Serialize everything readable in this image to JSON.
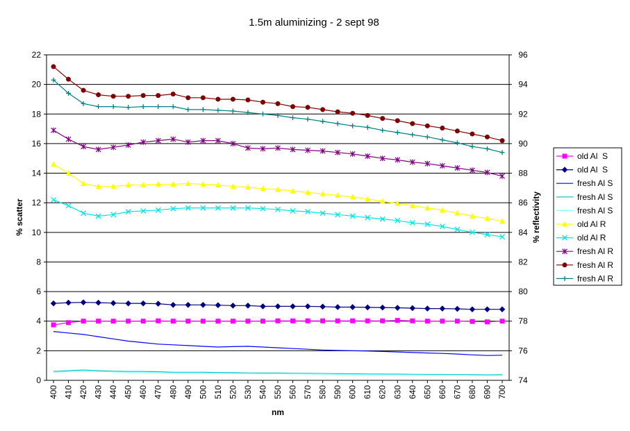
{
  "chart_data": {
    "type": "line",
    "title": "1.5m aluminizing - 2 sept 98",
    "xlabel": "nm",
    "ylabel_left": "% scatter",
    "ylabel_right": "% reflectivity",
    "x": [
      400,
      410,
      420,
      430,
      440,
      450,
      460,
      470,
      480,
      490,
      500,
      510,
      520,
      530,
      540,
      550,
      560,
      570,
      580,
      590,
      600,
      610,
      620,
      630,
      640,
      650,
      660,
      670,
      680,
      690,
      700
    ],
    "ylim_left": [
      0,
      22
    ],
    "yticks_left": [
      0,
      2,
      4,
      6,
      8,
      10,
      12,
      14,
      16,
      18,
      20,
      22
    ],
    "ylim_right": [
      74,
      96
    ],
    "yticks_right": [
      74,
      76,
      78,
      80,
      82,
      84,
      86,
      88,
      90,
      92,
      94,
      96
    ],
    "grid": "horizontal major lines",
    "legend": "right",
    "series": [
      {
        "name": "old Al  S",
        "axis": "left",
        "color": "#ff00ff",
        "marker": "square",
        "values": [
          3.75,
          3.9,
          4.0,
          4.0,
          4.0,
          4.0,
          4.0,
          4.02,
          4.0,
          4.0,
          4.0,
          4.0,
          4.0,
          4.0,
          4.0,
          4.02,
          4.02,
          4.02,
          4.02,
          4.02,
          4.02,
          4.02,
          4.02,
          4.05,
          4.02,
          4.0,
          4.0,
          4.0,
          3.98,
          3.95,
          4.0
        ]
      },
      {
        "name": "old Al  S",
        "axis": "left",
        "color": "#000080",
        "marker": "diamond",
        "values": [
          5.2,
          5.25,
          5.27,
          5.25,
          5.22,
          5.2,
          5.2,
          5.18,
          5.1,
          5.1,
          5.1,
          5.08,
          5.05,
          5.05,
          5.0,
          5.0,
          5.0,
          5.0,
          4.98,
          4.95,
          4.95,
          4.93,
          4.92,
          4.9,
          4.88,
          4.85,
          4.85,
          4.83,
          4.8,
          4.8,
          4.8
        ]
      },
      {
        "name": "fresh Al S",
        "axis": "left",
        "color": "#0000ff",
        "marker": "none",
        "values": [
          3.3,
          3.2,
          3.1,
          2.95,
          2.8,
          2.65,
          2.55,
          2.45,
          2.4,
          2.35,
          2.3,
          2.25,
          2.28,
          2.3,
          2.25,
          2.2,
          2.15,
          2.1,
          2.05,
          2.02,
          2.0,
          1.98,
          1.95,
          1.92,
          1.88,
          1.85,
          1.82,
          1.78,
          1.72,
          1.68,
          1.7
        ]
      },
      {
        "name": "fresh Al S",
        "axis": "left",
        "color": "#00bfbf",
        "marker": "none",
        "values": [
          0.6,
          0.65,
          0.7,
          0.65,
          0.62,
          0.6,
          0.6,
          0.58,
          0.55,
          0.55,
          0.55,
          0.53,
          0.52,
          0.5,
          0.5,
          0.5,
          0.48,
          0.47,
          0.46,
          0.45,
          0.44,
          0.43,
          0.42,
          0.42,
          0.41,
          0.4,
          0.4,
          0.39,
          0.38,
          0.37,
          0.38
        ]
      },
      {
        "name": "fresh Al S",
        "axis": "left",
        "color": "#80ffff",
        "marker": "none",
        "values": [
          0.55,
          0.6,
          0.65,
          0.6,
          0.57,
          0.55,
          0.55,
          0.53,
          0.5,
          0.5,
          0.5,
          0.48,
          0.47,
          0.46,
          0.45,
          0.45,
          0.44,
          0.43,
          0.42,
          0.41,
          0.4,
          0.39,
          0.38,
          0.38,
          0.37,
          0.36,
          0.36,
          0.35,
          0.34,
          0.33,
          0.34
        ]
      },
      {
        "name": "old Al R",
        "axis": "right",
        "color": "#ffff00",
        "marker": "triangle",
        "values": [
          88.6,
          88.0,
          87.3,
          87.1,
          87.1,
          87.2,
          87.2,
          87.25,
          87.25,
          87.3,
          87.25,
          87.2,
          87.1,
          87.05,
          86.95,
          86.9,
          86.8,
          86.7,
          86.6,
          86.5,
          86.4,
          86.25,
          86.1,
          85.95,
          85.8,
          85.65,
          85.5,
          85.3,
          85.1,
          84.95,
          84.75
        ]
      },
      {
        "name": "old Al R",
        "axis": "right",
        "color": "#00e5e5",
        "marker": "x",
        "values": [
          86.2,
          85.8,
          85.3,
          85.1,
          85.2,
          85.4,
          85.45,
          85.5,
          85.6,
          85.65,
          85.65,
          85.65,
          85.65,
          85.65,
          85.6,
          85.55,
          85.45,
          85.4,
          85.3,
          85.2,
          85.1,
          85.0,
          84.9,
          84.8,
          84.65,
          84.55,
          84.4,
          84.2,
          84.0,
          83.85,
          83.7
        ]
      },
      {
        "name": "fresh Al R",
        "axis": "right",
        "color": "#800080",
        "marker": "star",
        "values": [
          90.9,
          90.3,
          89.8,
          89.6,
          89.75,
          89.9,
          90.1,
          90.2,
          90.3,
          90.1,
          90.2,
          90.2,
          90.0,
          89.7,
          89.65,
          89.7,
          89.6,
          89.55,
          89.5,
          89.4,
          89.3,
          89.15,
          89.0,
          88.9,
          88.75,
          88.65,
          88.5,
          88.35,
          88.2,
          88.05,
          87.8
        ]
      },
      {
        "name": "fresh Al R",
        "axis": "right",
        "color": "#800000",
        "marker": "circle",
        "values": [
          95.2,
          94.35,
          93.6,
          93.3,
          93.2,
          93.2,
          93.25,
          93.25,
          93.35,
          93.1,
          93.1,
          93.0,
          93.0,
          92.95,
          92.8,
          92.7,
          92.5,
          92.45,
          92.3,
          92.15,
          92.05,
          91.9,
          91.7,
          91.55,
          91.35,
          91.2,
          91.05,
          90.85,
          90.65,
          90.45,
          90.2
        ]
      },
      {
        "name": "fresh Al R",
        "axis": "right",
        "color": "#008080",
        "marker": "plus",
        "values": [
          94.3,
          93.4,
          92.7,
          92.5,
          92.5,
          92.45,
          92.5,
          92.5,
          92.5,
          92.3,
          92.3,
          92.25,
          92.2,
          92.1,
          92.0,
          91.9,
          91.75,
          91.65,
          91.5,
          91.35,
          91.2,
          91.1,
          90.9,
          90.75,
          90.6,
          90.45,
          90.25,
          90.05,
          89.8,
          89.65,
          89.4
        ]
      }
    ]
  }
}
